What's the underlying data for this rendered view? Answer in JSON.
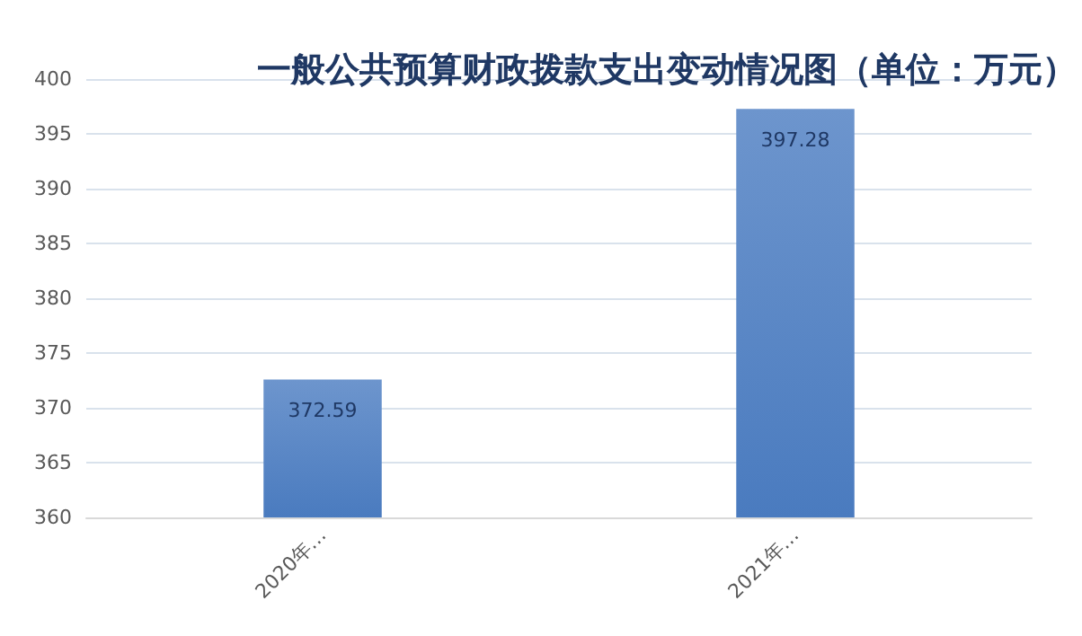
{
  "chart_data": {
    "type": "bar",
    "title": "一般公共预算财政拨款支出变动情况图（单位：万元）",
    "categories": [
      "2020年…",
      "2021年…"
    ],
    "values": [
      372.59,
      397.28
    ],
    "color": "#4a7bbf",
    "ylim": [
      360,
      400
    ],
    "yticks": [
      360,
      365,
      370,
      375,
      380,
      385,
      390,
      395,
      400
    ],
    "grid": "y",
    "data_labels": true
  }
}
